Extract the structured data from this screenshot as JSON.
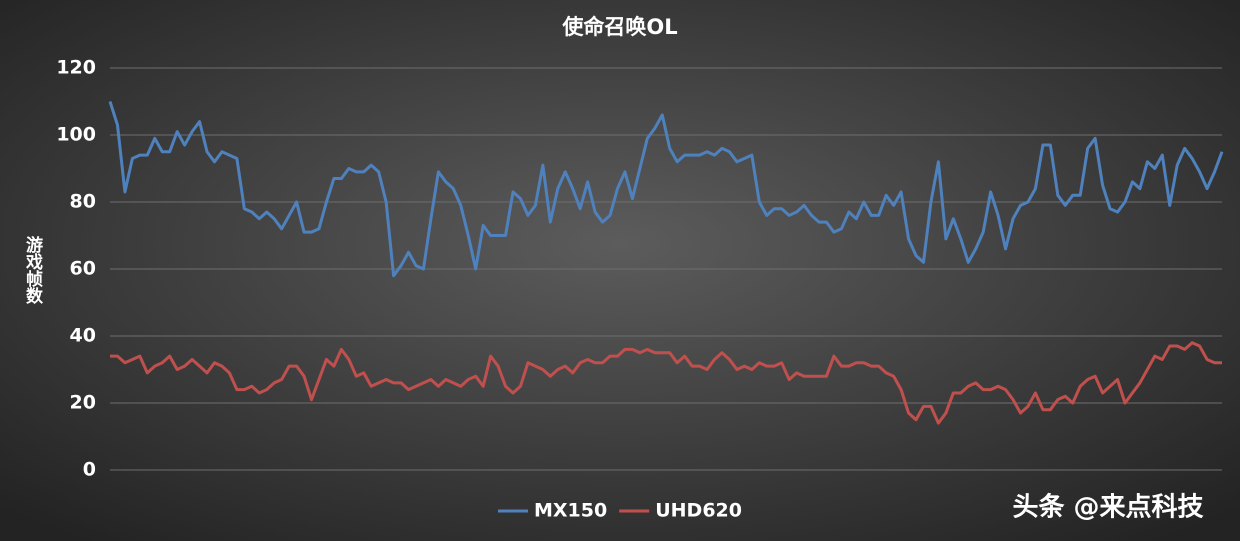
{
  "chart_data": {
    "type": "line",
    "title": "使命召唤OL",
    "y_label": "游戏帧数",
    "watermark": "头条 @来点科技",
    "ylim": [
      0,
      120
    ],
    "yticks": [
      0,
      20,
      40,
      60,
      80,
      100,
      120
    ],
    "grid": true,
    "legend": "bottom",
    "series": [
      {
        "name": "MX150",
        "color": "#4f81bd",
        "values": [
          110,
          103,
          83,
          93,
          94,
          94,
          99,
          95,
          95,
          101,
          97,
          101,
          104,
          95,
          92,
          95,
          94,
          93,
          78,
          77,
          75,
          77,
          75,
          72,
          76,
          80,
          71,
          71,
          72,
          80,
          87,
          87,
          90,
          89,
          89,
          91,
          89,
          80,
          58,
          61,
          65,
          61,
          60,
          75,
          89,
          86,
          84,
          79,
          70,
          60,
          73,
          70,
          70,
          70,
          83,
          81,
          76,
          79,
          91,
          74,
          84,
          89,
          84,
          78,
          86,
          77,
          74,
          76,
          84,
          89,
          81,
          90,
          99,
          102,
          106,
          96,
          92,
          94,
          94,
          94,
          95,
          94,
          96,
          95,
          92,
          93,
          94,
          80,
          76,
          78,
          78,
          76,
          77,
          79,
          76,
          74,
          74,
          71,
          72,
          77,
          75,
          80,
          76,
          76,
          82,
          79,
          83,
          69,
          64,
          62,
          80,
          92,
          69,
          75,
          69,
          62,
          66,
          71,
          83,
          76,
          66,
          75,
          79,
          80,
          84,
          97,
          97,
          82,
          79,
          82,
          82,
          96,
          99,
          85,
          78,
          77,
          80,
          86,
          84,
          92,
          90,
          94,
          79,
          91,
          96,
          93,
          89,
          84,
          89,
          95
        ]
      },
      {
        "name": "UHD620",
        "color": "#c0504d",
        "values": [
          34,
          34,
          32,
          33,
          34,
          29,
          31,
          32,
          34,
          30,
          31,
          33,
          31,
          29,
          32,
          31,
          29,
          24,
          24,
          25,
          23,
          24,
          26,
          27,
          31,
          31,
          28,
          21,
          27,
          33,
          31,
          36,
          33,
          28,
          29,
          25,
          26,
          27,
          26,
          26,
          24,
          25,
          26,
          27,
          25,
          27,
          26,
          25,
          27,
          28,
          25,
          34,
          31,
          25,
          23,
          25,
          32,
          31,
          30,
          28,
          30,
          31,
          29,
          32,
          33,
          32,
          32,
          34,
          34,
          36,
          36,
          35,
          36,
          35,
          35,
          35,
          32,
          34,
          31,
          31,
          30,
          33,
          35,
          33,
          30,
          31,
          30,
          32,
          31,
          31,
          32,
          27,
          29,
          28,
          28,
          28,
          28,
          34,
          31,
          31,
          32,
          32,
          31,
          31,
          29,
          28,
          24,
          17,
          15,
          19,
          19,
          14,
          17,
          23,
          23,
          25,
          26,
          24,
          24,
          25,
          24,
          21,
          17,
          19,
          23,
          18,
          18,
          21,
          22,
          20,
          25,
          27,
          28,
          23,
          25,
          27,
          20,
          23,
          26,
          30,
          34,
          33,
          37,
          37,
          36,
          38,
          37,
          33,
          32,
          32
        ]
      }
    ]
  }
}
